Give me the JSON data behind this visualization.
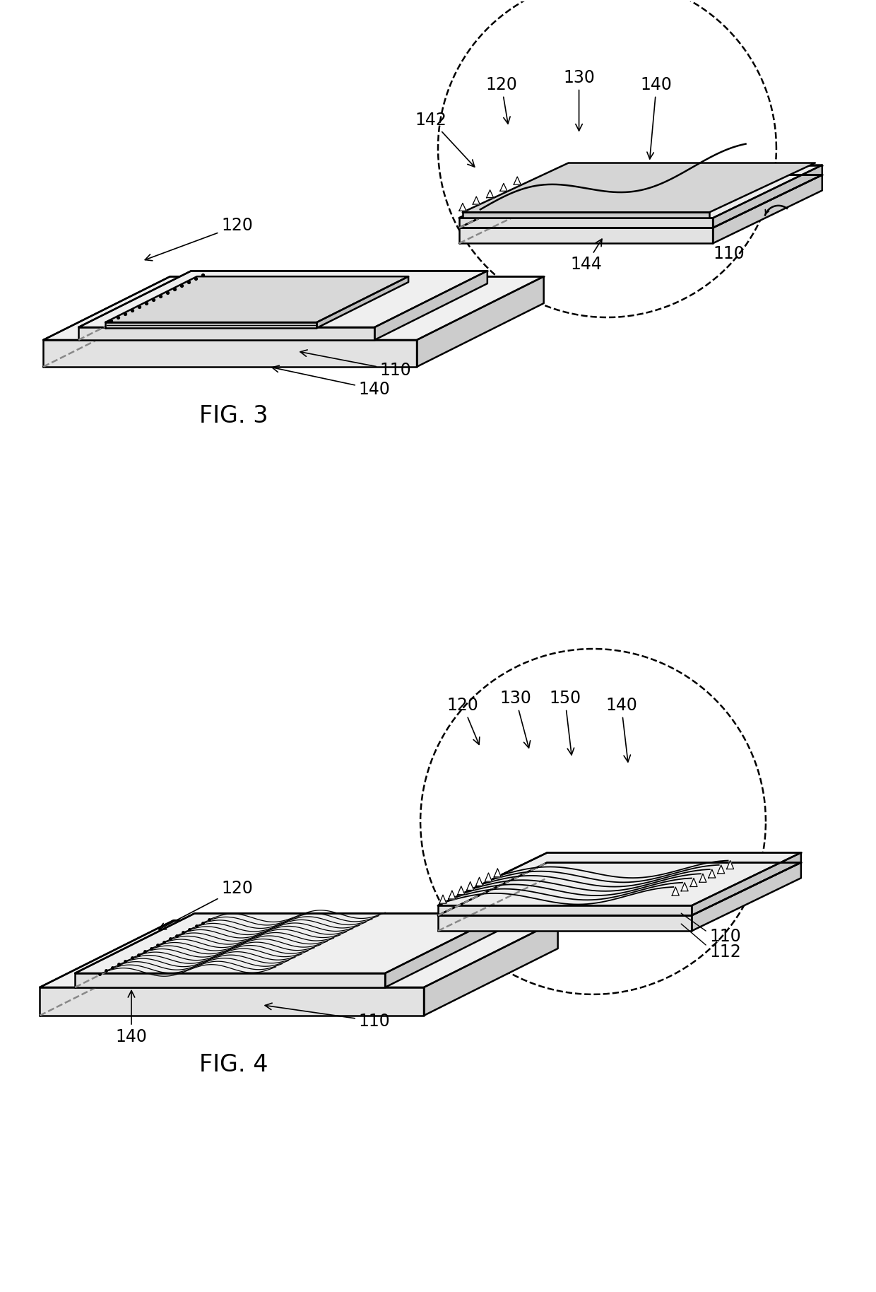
{
  "fig_width": 12.4,
  "fig_height": 18.28,
  "background_color": "#ffffff",
  "line_color": "#000000",
  "lw_main": 1.8,
  "lw_thin": 1.0,
  "title_fontsize": 24,
  "label_fontsize": 17
}
